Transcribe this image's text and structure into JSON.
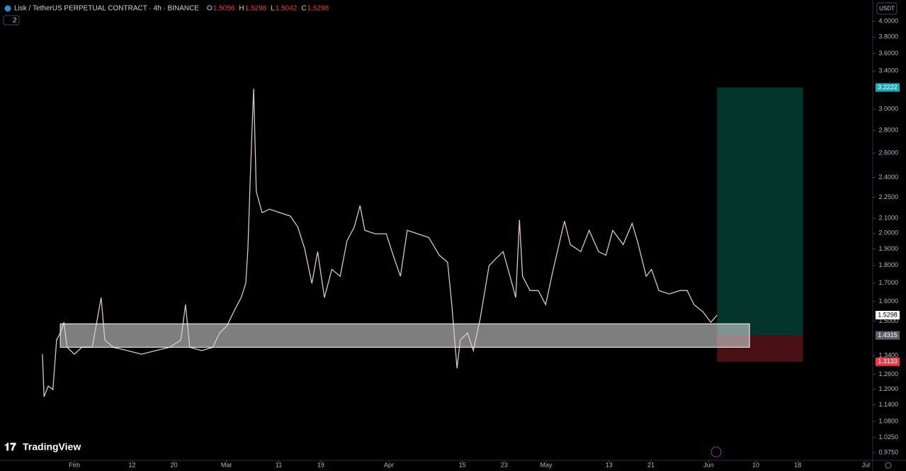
{
  "header": {
    "symbol": "Lisk / TetherUS PERPETUAL CONTRACT · 4h · BINANCE",
    "ohlc": [
      {
        "label": "O",
        "value": 1.5056
      },
      {
        "label": "H",
        "value": 1.5298
      },
      {
        "label": "L",
        "value": 1.5042
      },
      {
        "label": "C",
        "value": 1.5298
      }
    ],
    "indicator_count": "2",
    "currency": "USDT"
  },
  "branding": "TradingView",
  "chart_data": {
    "type": "line",
    "log_scale": true,
    "color": "#d6c7c9",
    "x": [
      25.9,
      26.2,
      27.0,
      27.9,
      28.6,
      29.3,
      30.0,
      30.6,
      32,
      33.4,
      35.4,
      37.1,
      37.8,
      39.4,
      42.1,
      44.8,
      47.5,
      50.2,
      52.3,
      53.2,
      54.0,
      56.3,
      58.4,
      59.7,
      61.1,
      62.4,
      63.8,
      64.7,
      65.1,
      65.5,
      65.9,
      66.2,
      66.7,
      67.8,
      69.2,
      71.2,
      73.2,
      74.6,
      75.9,
      77.3,
      78.4,
      79.7,
      81.1,
      82.7,
      84.0,
      85.4,
      86.5,
      87.4,
      89.4,
      91.5,
      92.8,
      94.2,
      95.5,
      97.5,
      99.6,
      101.6,
      103.2,
      104.0,
      105.0,
      105.6,
      107.0,
      108.1,
      109.4,
      111.1,
      112.4,
      113.8,
      115.1,
      116.2,
      116.9,
      117.5,
      118.9,
      120.5,
      121.9,
      123.2,
      124.6,
      125.5,
      126.6,
      128.6,
      130.2,
      132.0,
      133.4,
      134.7,
      136.7,
      138.4,
      139.4,
      141.1,
      142.1,
      143.5,
      145.5,
      147.5,
      148.9,
      150.2,
      151.9,
      153.4,
      154.6
    ],
    "values": [
      1.346,
      1.171,
      1.213,
      1.199,
      1.41,
      1.443,
      1.494,
      1.377,
      1.346,
      1.377,
      1.377,
      1.62,
      1.41,
      1.377,
      1.362,
      1.346,
      1.362,
      1.377,
      1.41,
      1.583,
      1.377,
      1.362,
      1.377,
      1.443,
      1.477,
      1.547,
      1.62,
      1.697,
      1.905,
      2.347,
      2.825,
      3.209,
      2.293,
      2.139,
      2.164,
      2.139,
      2.115,
      2.042,
      1.905,
      1.697,
      1.883,
      1.62,
      1.777,
      1.737,
      1.95,
      2.042,
      2.189,
      2.019,
      1.996,
      1.996,
      1.861,
      1.737,
      2.019,
      1.996,
      1.972,
      1.861,
      1.819,
      1.583,
      1.285,
      1.41,
      1.443,
      1.362,
      1.511,
      1.798,
      1.84,
      1.883,
      1.737,
      1.62,
      2.09,
      1.737,
      1.658,
      1.658,
      1.583,
      1.757,
      1.95,
      2.081,
      1.927,
      1.883,
      2.019,
      1.883,
      1.861,
      2.019,
      1.927,
      2.066,
      1.95,
      1.737,
      1.777,
      1.658,
      1.639,
      1.658,
      1.658,
      1.583,
      1.547,
      1.494,
      1.5298
    ],
    "xlim": [
      17.8,
      184.3
    ],
    "ylim": [
      0.951,
      4.29
    ],
    "xticks": [
      {
        "value": 32,
        "label": "Feb"
      },
      {
        "value": 43,
        "label": "12"
      },
      {
        "value": 51,
        "label": "20"
      },
      {
        "value": 61,
        "label": "Mar"
      },
      {
        "value": 71,
        "label": "11"
      },
      {
        "value": 79,
        "label": "19"
      },
      {
        "value": 92,
        "label": "Apr"
      },
      {
        "value": 106,
        "label": "15"
      },
      {
        "value": 114,
        "label": "23"
      },
      {
        "value": 122,
        "label": "May"
      },
      {
        "value": 134,
        "label": "13"
      },
      {
        "value": 142,
        "label": "21"
      },
      {
        "value": 153,
        "label": "Jun"
      },
      {
        "value": 162,
        "label": "10"
      },
      {
        "value": 170,
        "label": "18"
      },
      {
        "value": 183,
        "label": "Jul"
      }
    ],
    "yticks": [
      {
        "value": 4.0,
        "label": "4.0000"
      },
      {
        "value": 3.8,
        "label": "3.8000"
      },
      {
        "value": 3.6,
        "label": "3.6000"
      },
      {
        "value": 3.4,
        "label": "3.4000"
      },
      {
        "value": 3.0,
        "label": "3.0000"
      },
      {
        "value": 2.8,
        "label": "2.8000"
      },
      {
        "value": 2.6,
        "label": "2.6000"
      },
      {
        "value": 2.4,
        "label": "2.4000"
      },
      {
        "value": 2.25,
        "label": "2.2500"
      },
      {
        "value": 2.1,
        "label": "2.1000"
      },
      {
        "value": 2.0,
        "label": "2.0000"
      },
      {
        "value": 1.9,
        "label": "1.9000"
      },
      {
        "value": 1.8,
        "label": "1.8000"
      },
      {
        "value": 1.7,
        "label": "1.7000"
      },
      {
        "value": 1.6,
        "label": "1.6000"
      },
      {
        "value": 1.5,
        "label": "1.5000"
      },
      {
        "value": 1.34,
        "label": "1.3400"
      },
      {
        "value": 1.26,
        "label": "1.2600"
      },
      {
        "value": 1.2,
        "label": "1.2000"
      },
      {
        "value": 1.14,
        "label": "1.1400"
      },
      {
        "value": 1.08,
        "label": "1.0800"
      },
      {
        "value": 1.025,
        "label": "1.0250"
      },
      {
        "value": 0.975,
        "label": "0.9750"
      }
    ],
    "zone": {
      "low": 1.377,
      "high": 1.487,
      "x": [
        29.3,
        160.8
      ]
    },
    "position": {
      "entry": 1.4315,
      "target": 3.2222,
      "stop": 1.3133,
      "x": [
        154.6,
        171.0
      ]
    },
    "last_price": 1.5298
  }
}
